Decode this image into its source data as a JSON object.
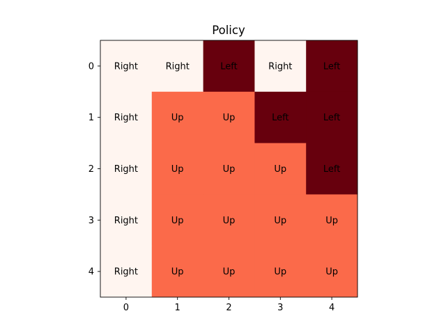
{
  "chart_data": {
    "type": "heatmap",
    "title": "Policy",
    "xlabel": "",
    "ylabel": "",
    "x_ticks": [
      "0",
      "1",
      "2",
      "3",
      "4"
    ],
    "y_ticks": [
      "0",
      "1",
      "2",
      "3",
      "4"
    ],
    "grid": false,
    "colormap": "Reds",
    "value_colors": {
      "0": "#fff5f0",
      "1": "#fb6a4a",
      "2": "#67000d"
    },
    "actions": {
      "Right": 0,
      "Up": 1,
      "Left": 2
    },
    "cells": [
      [
        "Right",
        "Right",
        "Left",
        "Right",
        "Left"
      ],
      [
        "Right",
        "Up",
        "Up",
        "Left",
        "Left"
      ],
      [
        "Right",
        "Up",
        "Up",
        "Up",
        "Left"
      ],
      [
        "Right",
        "Up",
        "Up",
        "Up",
        "Up"
      ],
      [
        "Right",
        "Up",
        "Up",
        "Up",
        "Up"
      ]
    ]
  }
}
